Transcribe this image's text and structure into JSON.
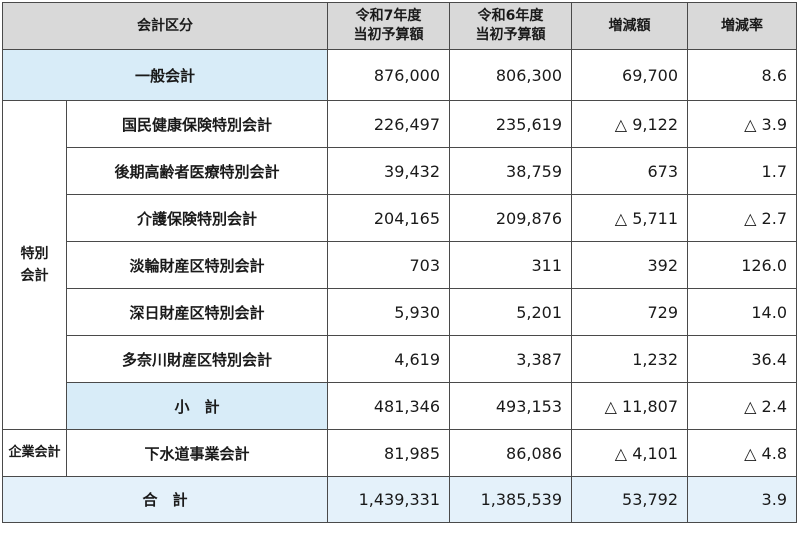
{
  "headers": {
    "category": "会計区分",
    "r7_line1": "令和7年度",
    "r7_line2": "当初予算額",
    "r6_line1": "令和6年度",
    "r6_line2": "当初予算額",
    "diff": "増減額",
    "rate": "増減率"
  },
  "general": {
    "label": "一般会計",
    "r7": "876,000",
    "r6": "806,300",
    "diff": "69,700",
    "rate": "8.6"
  },
  "special": {
    "group_line1": "特別",
    "group_line2": "会計",
    "rows": [
      {
        "label": "国民健康保険特別会計",
        "r7": "226,497",
        "r6": "235,619",
        "diff": "△ 9,122",
        "rate": "△ 3.9"
      },
      {
        "label": "後期高齢者医療特別会計",
        "r7": "39,432",
        "r6": "38,759",
        "diff": "673",
        "rate": "1.7"
      },
      {
        "label": "介護保険特別会計",
        "r7": "204,165",
        "r6": "209,876",
        "diff": "△ 5,711",
        "rate": "△ 2.7"
      },
      {
        "label": "淡輪財産区特別会計",
        "r7": "703",
        "r6": "311",
        "diff": "392",
        "rate": "126.0"
      },
      {
        "label": "深日財産区特別会計",
        "r7": "5,930",
        "r6": "5,201",
        "diff": "729",
        "rate": "14.0"
      },
      {
        "label": "多奈川財産区特別会計",
        "r7": "4,619",
        "r6": "3,387",
        "diff": "1,232",
        "rate": "36.4"
      }
    ],
    "subtotal": {
      "label": "小　計",
      "r7": "481,346",
      "r6": "493,153",
      "diff": "△ 11,807",
      "rate": "△ 2.4"
    }
  },
  "enterprise": {
    "group": "企業会計",
    "row": {
      "label": "下水道事業会計",
      "r7": "81,985",
      "r6": "86,086",
      "diff": "△ 4,101",
      "rate": "△ 4.8"
    }
  },
  "total": {
    "label": "合　計",
    "r7": "1,439,331",
    "r6": "1,385,539",
    "diff": "53,792",
    "rate": "3.9"
  },
  "colors": {
    "header_bg": "#d9d9d9",
    "label_blue": "#d8ecf8",
    "total_blue": "#e4f1fa",
    "border": "#4a4a4a"
  }
}
